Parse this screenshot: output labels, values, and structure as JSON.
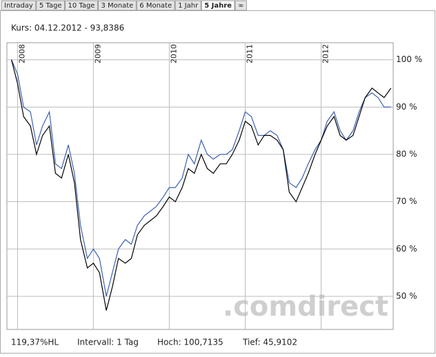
{
  "tabs": [
    "Intraday",
    "5 Tage",
    "10 Tage",
    "3 Monate",
    "6 Monate",
    "1 Jahr",
    "5 Jahre",
    "∞"
  ],
  "active_tab": 6,
  "chart_data": {
    "type": "line",
    "subtitle": "Kurs: 04.12.2012 - 93,8386",
    "watermark": ".comdirect",
    "x": [
      2007.92,
      2008.0,
      2008.08,
      2008.17,
      2008.25,
      2008.33,
      2008.42,
      2008.5,
      2008.58,
      2008.67,
      2008.75,
      2008.83,
      2008.92,
      2009.0,
      2009.08,
      2009.17,
      2009.25,
      2009.33,
      2009.42,
      2009.5,
      2009.58,
      2009.67,
      2009.75,
      2009.83,
      2009.92,
      2010.0,
      2010.08,
      2010.17,
      2010.25,
      2010.33,
      2010.42,
      2010.5,
      2010.58,
      2010.67,
      2010.75,
      2010.83,
      2010.92,
      2011.0,
      2011.08,
      2011.17,
      2011.25,
      2011.33,
      2011.42,
      2011.5,
      2011.58,
      2011.67,
      2011.75,
      2011.83,
      2011.92,
      2012.0,
      2012.08,
      2012.17,
      2012.25,
      2012.33,
      2012.42,
      2012.5,
      2012.58,
      2012.67,
      2012.75,
      2012.83,
      2012.92
    ],
    "series": [
      {
        "color": "#000000",
        "values": [
          100,
          95,
          88,
          86,
          80,
          84,
          86,
          76,
          75,
          80,
          74,
          62,
          56,
          57,
          55,
          47,
          52,
          58,
          57,
          58,
          63,
          65,
          66,
          67,
          69,
          71,
          70,
          73,
          77,
          76,
          80,
          77,
          76,
          78,
          78,
          80,
          83,
          87,
          86,
          82,
          84,
          84,
          83,
          81,
          72,
          70,
          73,
          76,
          80,
          83,
          86,
          88,
          84,
          83,
          84,
          88,
          92,
          94,
          93,
          92,
          94
        ]
      },
      {
        "color": "#3a5fb0",
        "values": [
          100,
          97,
          90,
          89,
          82,
          86,
          89,
          78,
          77,
          82,
          76,
          65,
          58,
          60,
          58,
          50,
          55,
          60,
          62,
          61,
          65,
          67,
          68,
          69,
          71,
          73,
          73,
          75,
          80,
          78,
          83,
          80,
          79,
          80,
          80,
          81,
          85,
          89,
          88,
          84,
          84,
          85,
          84,
          81,
          74,
          73,
          75,
          78,
          81,
          83,
          87,
          89,
          85,
          83,
          85,
          89,
          92,
          93,
          92,
          90,
          90
        ]
      }
    ],
    "xlim": [
      2007.86,
      2012.95
    ],
    "xticks": [
      2008,
      2009,
      2010,
      2011,
      2012
    ],
    "ylim": [
      43,
      103.6
    ],
    "yticks": [
      {
        "value": 50,
        "label": "50 %"
      },
      {
        "value": 60,
        "label": "60 %"
      },
      {
        "value": 70,
        "label": "70 %"
      },
      {
        "value": 80,
        "label": "80 %"
      },
      {
        "value": 90,
        "label": "90 %"
      },
      {
        "value": 100,
        "label": "100 %"
      }
    ],
    "grid": true
  },
  "footer": [
    "119,37%HL",
    "Intervall: 1 Tag",
    "Hoch: 100,7135",
    "Tief: 45,9102"
  ]
}
